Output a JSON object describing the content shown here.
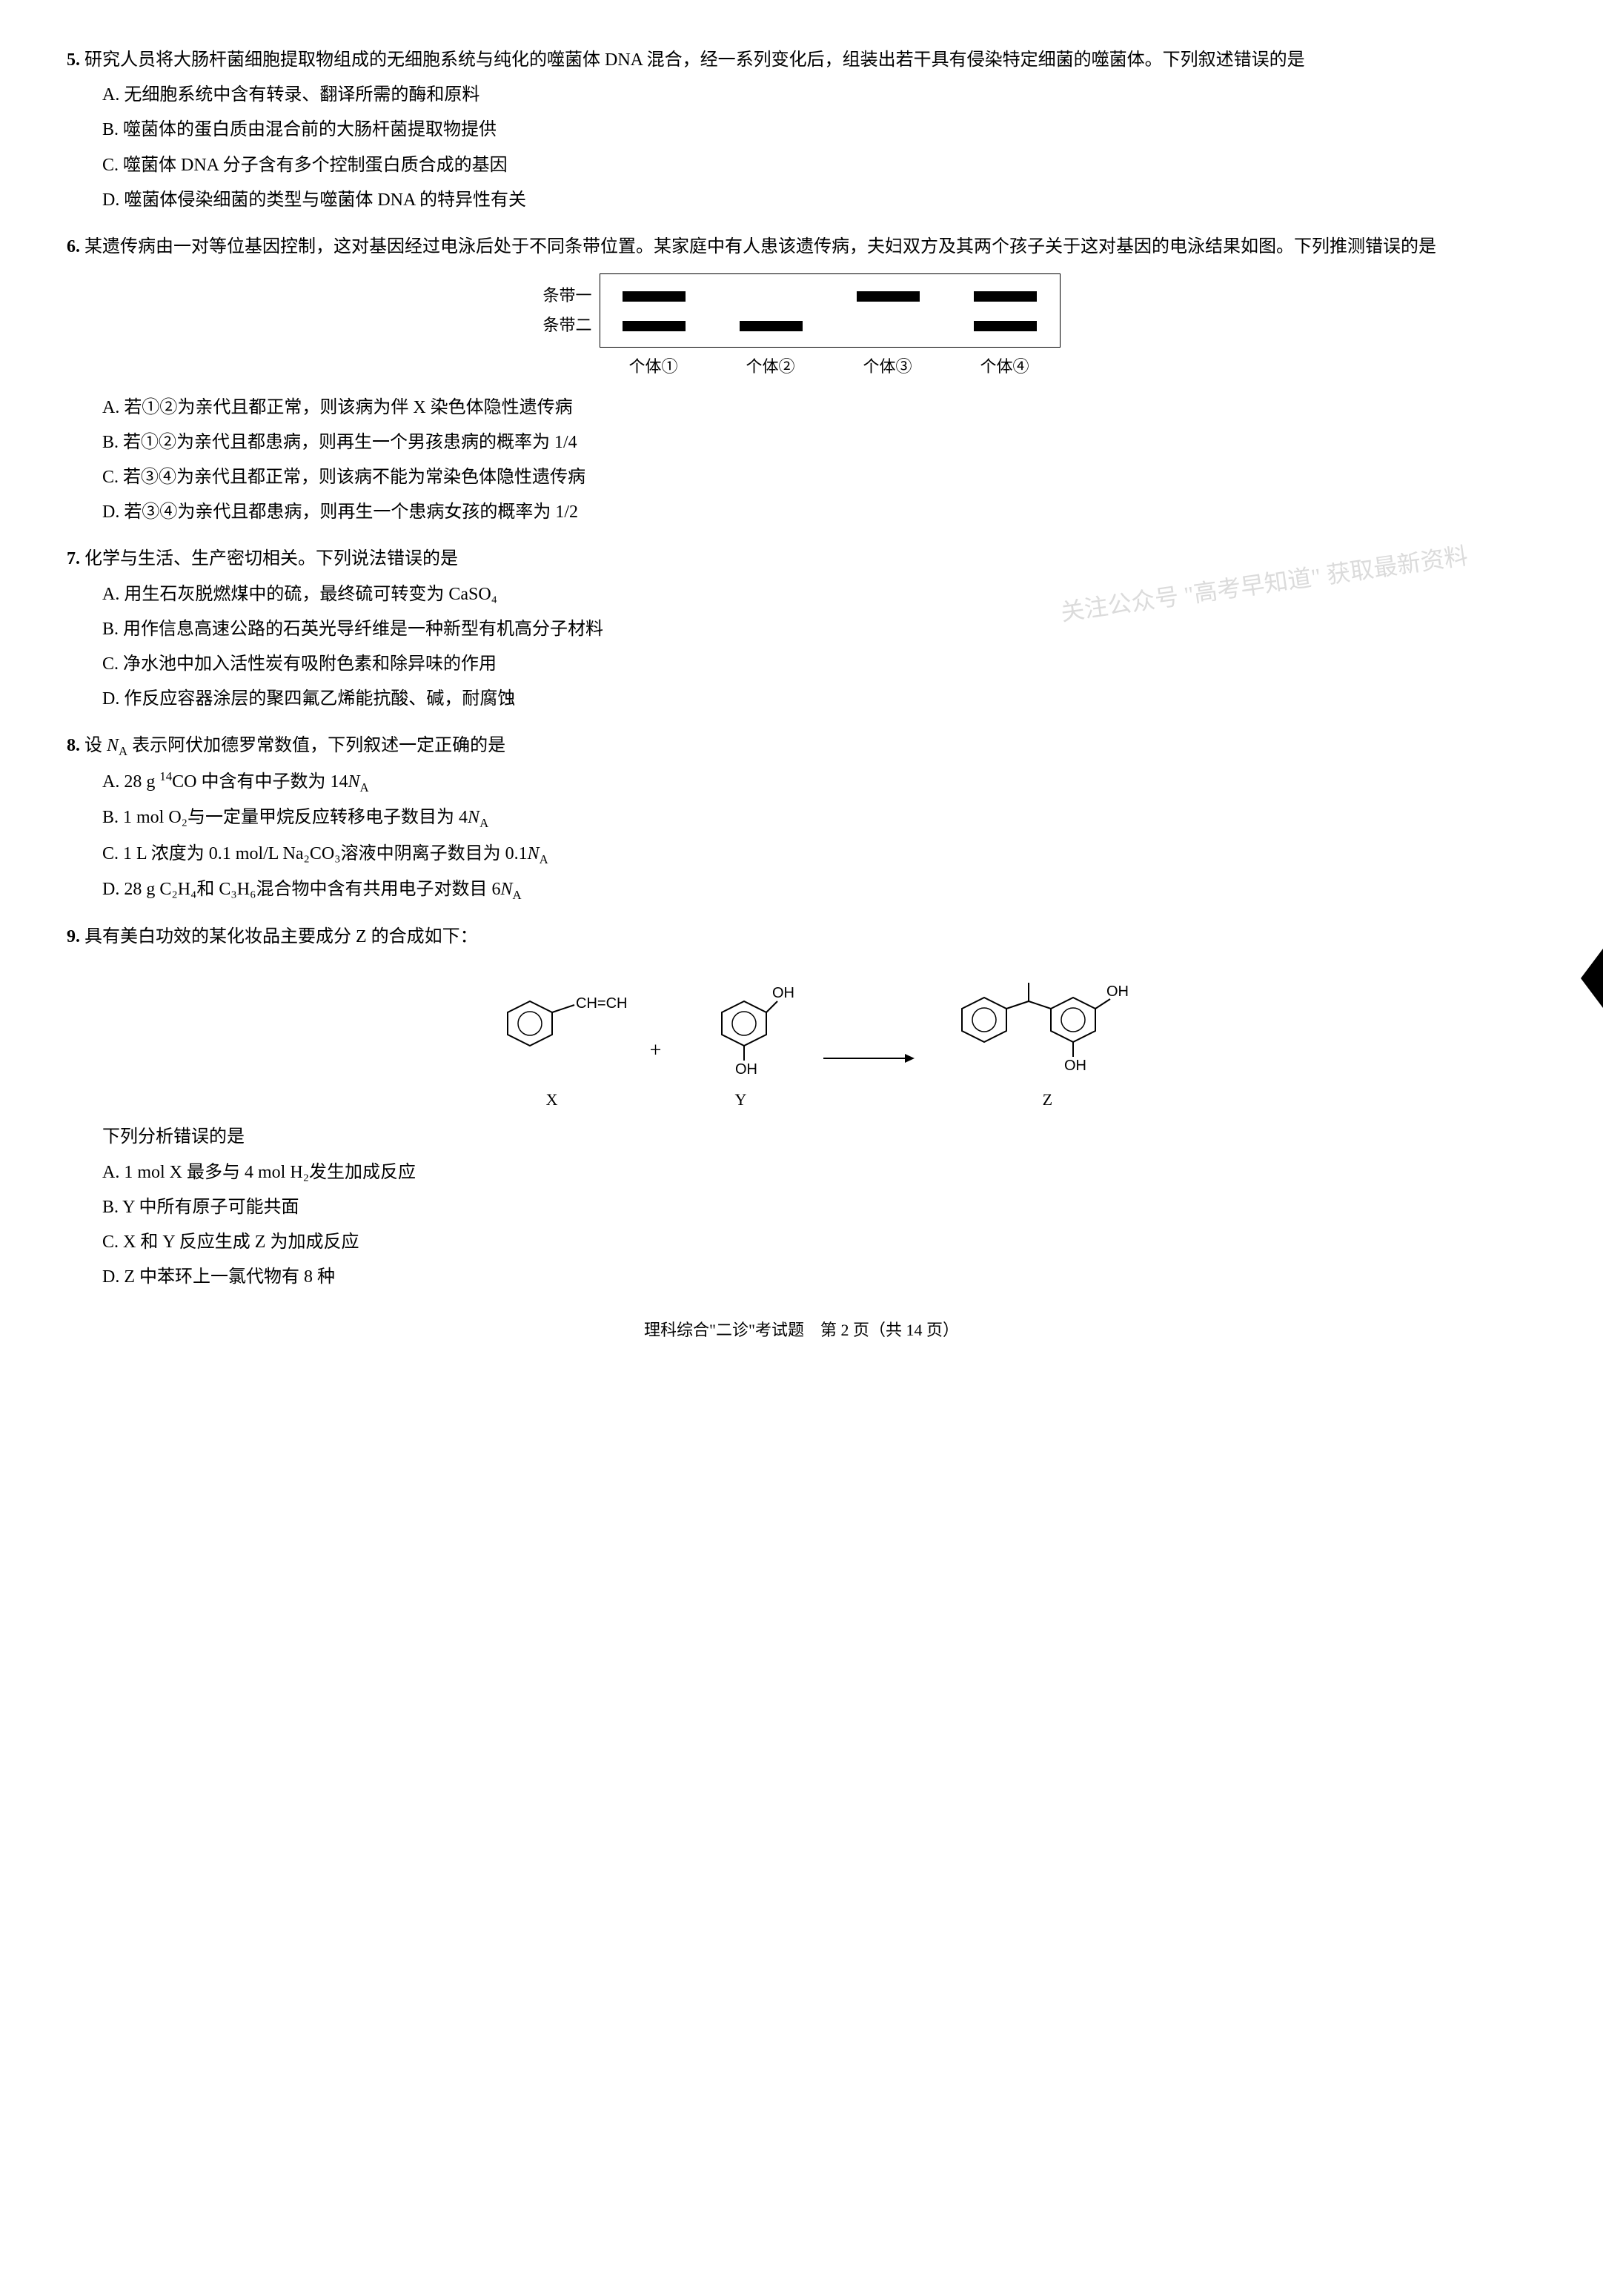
{
  "watermark": "关注公众号 \"高考早知道\" 获取最新资料",
  "questions": [
    {
      "num": "5.",
      "stem": "研究人员将大肠杆菌细胞提取物组成的无细胞系统与纯化的噬菌体 DNA 混合，经一系列变化后，组装出若干具有侵染特定细菌的噬菌体。下列叙述错误的是",
      "options": [
        "A. 无细胞系统中含有转录、翻译所需的酶和原料",
        "B. 噬菌体的蛋白质由混合前的大肠杆菌提取物提供",
        "C. 噬菌体 DNA 分子含有多个控制蛋白质合成的基因",
        "D. 噬菌体侵染细菌的类型与噬菌体 DNA 的特异性有关"
      ]
    },
    {
      "num": "6.",
      "stem": "某遗传病由一对等位基因控制，这对基因经过电泳后处于不同条带位置。某家庭中有人患该遗传病，夫妇双方及其两个孩子关于这对基因的电泳结果如图。下列推测错误的是",
      "options": [
        "A. 若①②为亲代且都正常，则该病为伴 X 染色体隐性遗传病",
        "B. 若①②为亲代且都患病，则再生一个男孩患病的概率为 1/4",
        "C. 若③④为亲代且都正常，则该病不能为常染色体隐性遗传病",
        "D. 若③④为亲代且都患病，则再生一个患病女孩的概率为 1/2"
      ]
    },
    {
      "num": "7.",
      "stem": "化学与生活、生产密切相关。下列说法错误的是",
      "options": [
        "A. 用生石灰脱燃煤中的硫，最终硫可转变为 CaSO₄",
        "B. 用作信息高速公路的石英光导纤维是一种新型有机高分子材料",
        "C. 净水池中加入活性炭有吸附色素和除异味的作用",
        "D. 作反应容器涂层的聚四氟乙烯能抗酸、碱，耐腐蚀"
      ]
    },
    {
      "num": "8.",
      "stem_parts": [
        "设 ",
        "Nₐ",
        " 表示阿伏加德罗常数值，下列叙述一定正确的是"
      ],
      "options_raw": [
        {
          "pre": "A. 28 g ",
          "sup": "14",
          "post": "CO 中含有中子数为 14",
          "na": true
        },
        {
          "pre": "B. 1 mol O₂与一定量甲烷反应转移电子数目为 4",
          "na": true
        },
        {
          "pre": "C. 1 L 浓度为 0.1 mol/L Na₂CO₃溶液中阴离子数目为 0.1",
          "na": true
        },
        {
          "pre": "D. 28 g C₂H₄和 C₃H₆混合物中含有共用电子对数目 6",
          "na": true
        }
      ]
    },
    {
      "num": "9.",
      "stem": "具有美白功效的某化妆品主要成分 Z 的合成如下：",
      "post_stem": "下列分析错误的是",
      "options": [
        "A. 1 mol X 最多与 4 mol H₂发生加成反应",
        "B. Y 中所有原子可能共面",
        "C. X 和 Y 反应生成 Z 为加成反应",
        "D. Z 中苯环上一氯代物有 8 种"
      ]
    }
  ],
  "gel": {
    "row_labels": [
      "条带一",
      "条带二"
    ],
    "lanes": [
      {
        "label": "个体①",
        "bands": [
          true,
          true
        ]
      },
      {
        "label": "个体②",
        "bands": [
          false,
          true
        ]
      },
      {
        "label": "个体③",
        "bands": [
          true,
          false
        ]
      },
      {
        "label": "个体④",
        "bands": [
          true,
          true
        ]
      }
    ]
  },
  "reaction": {
    "labels": [
      "X",
      "Y",
      "Z"
    ],
    "vinyl": "CH=CH₂",
    "oh": "OH"
  },
  "footer": "理科综合\"二诊\"考试题　第 2 页（共 14 页）"
}
